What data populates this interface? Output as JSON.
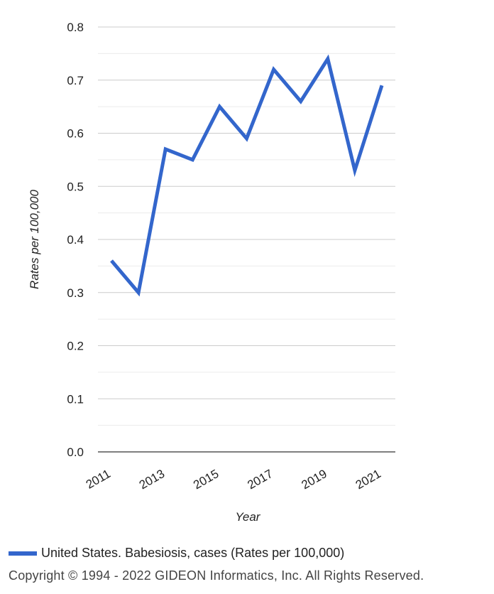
{
  "chart_data": {
    "type": "line",
    "x": [
      2011,
      2012,
      2013,
      2014,
      2015,
      2016,
      2017,
      2018,
      2019,
      2020,
      2021
    ],
    "series": [
      {
        "name": "United States. Babesiosis, cases (Rates per 100,000)",
        "values": [
          0.36,
          0.3,
          0.57,
          0.55,
          0.65,
          0.59,
          0.72,
          0.66,
          0.74,
          0.53,
          0.69
        ]
      }
    ],
    "xlabel": "Year",
    "ylabel": "Rates per 100,000",
    "ylim": [
      0,
      0.8
    ],
    "y_ticks": [
      "0.0",
      "0.1",
      "0.2",
      "0.3",
      "0.4",
      "0.5",
      "0.6",
      "0.7",
      "0.8"
    ],
    "x_tick_labels": [
      "2011",
      "2013",
      "2015",
      "2017",
      "2019",
      "2021"
    ],
    "grid": true,
    "legend_placement": "bottom-left",
    "series_color": "#3366cc"
  },
  "legend": {
    "label": "United States. Babesiosis, cases (Rates per 100,000)"
  },
  "footer": {
    "copyright": "Copyright © 1994 - 2022 GIDEON Informatics, Inc. All Rights Reserved."
  }
}
